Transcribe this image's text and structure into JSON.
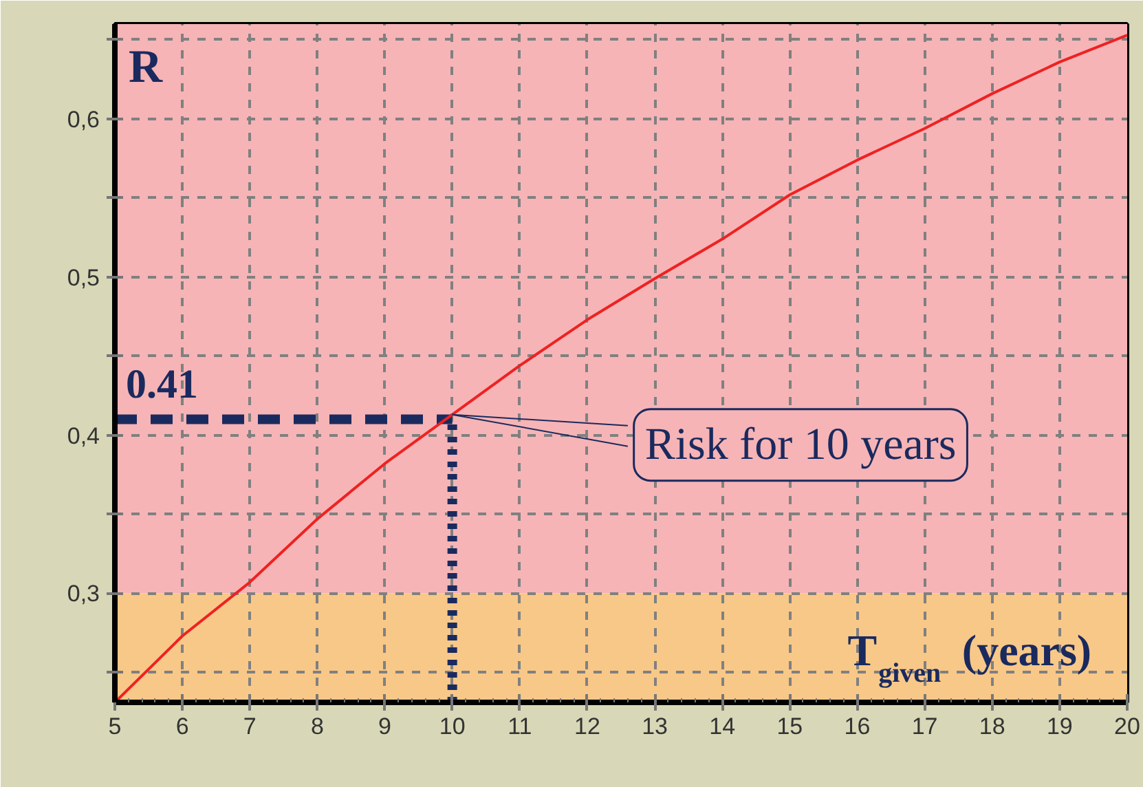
{
  "chart_data": {
    "type": "line",
    "xlabel": "T$_{given}$ (years)",
    "ylabel": "R",
    "x": [
      5,
      6,
      7,
      8,
      9,
      10,
      11,
      12,
      13,
      14,
      15,
      16,
      17,
      18,
      19,
      20
    ],
    "series": [
      {
        "color": "#ee2222",
        "values": [
          0.231,
          0.273,
          0.307,
          0.347,
          0.382,
          0.413,
          0.444,
          0.473,
          0.499,
          0.524,
          0.552,
          0.574,
          0.594,
          0.616,
          0.636,
          0.653
        ]
      }
    ],
    "xlim": [
      5,
      20
    ],
    "ylim": [
      0.231,
      0.66
    ],
    "xticks": [
      5,
      6,
      7,
      8,
      9,
      10,
      11,
      12,
      13,
      14,
      15,
      16,
      17,
      18,
      19,
      20
    ],
    "yticks": [
      {
        "value": 0.25,
        "label": null
      },
      {
        "value": 0.3,
        "label": "0,3"
      },
      {
        "value": 0.35,
        "label": null
      },
      {
        "value": 0.4,
        "label": "0,4"
      },
      {
        "value": 0.45,
        "label": null
      },
      {
        "value": 0.5,
        "label": "0,5"
      },
      {
        "value": 0.55,
        "label": null
      },
      {
        "value": 0.6,
        "label": "0,6"
      },
      {
        "value": 0.65,
        "label": null
      }
    ],
    "grid": true,
    "marker": "none",
    "line_style": "solid",
    "bands": [
      {
        "axis": "y",
        "from": 0.231,
        "to": 0.3,
        "color": "#f8c888"
      },
      {
        "axis": "y",
        "from": 0.3,
        "to": 0.66,
        "color": "#f6b4b6"
      }
    ],
    "ref_lines": [
      {
        "axis": "y",
        "value": 0.41,
        "label": "0.41",
        "color": "#1a2a5e",
        "line_style": "dashed"
      },
      {
        "axis": "x",
        "value": 10,
        "color": "#1a2a5e",
        "line_style": "dotted"
      }
    ],
    "annotations": [
      {
        "text": "Risk for 10 years",
        "x": 10,
        "y": 0.413
      }
    ]
  }
}
